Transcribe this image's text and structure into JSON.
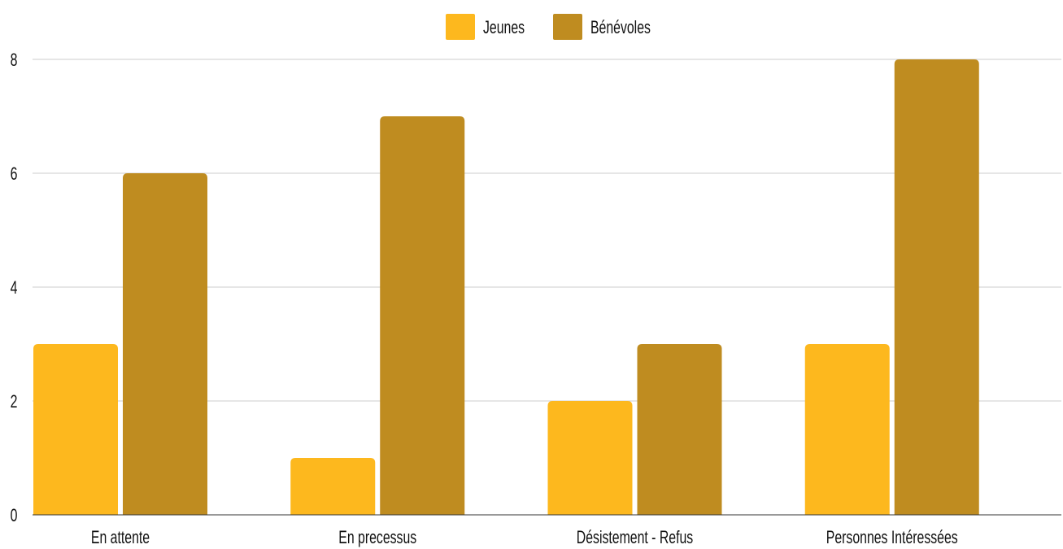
{
  "chart_data": {
    "type": "bar",
    "categories": [
      "En attente",
      "En precessus",
      "Désistement - Refus",
      "Personnes Intéressées"
    ],
    "series": [
      {
        "name": "Jeunes",
        "values": [
          3,
          1,
          2,
          3
        ],
        "color": "#FDB81E"
      },
      {
        "name": "Bénévoles",
        "values": [
          6,
          7,
          3,
          8
        ],
        "color": "#BF8C20"
      }
    ],
    "ylim": [
      0,
      8
    ],
    "yticks": [
      0,
      2,
      4,
      6,
      8
    ],
    "grid": true,
    "legend_position": "top-center",
    "xlabel": "",
    "ylabel": "",
    "title": ""
  }
}
